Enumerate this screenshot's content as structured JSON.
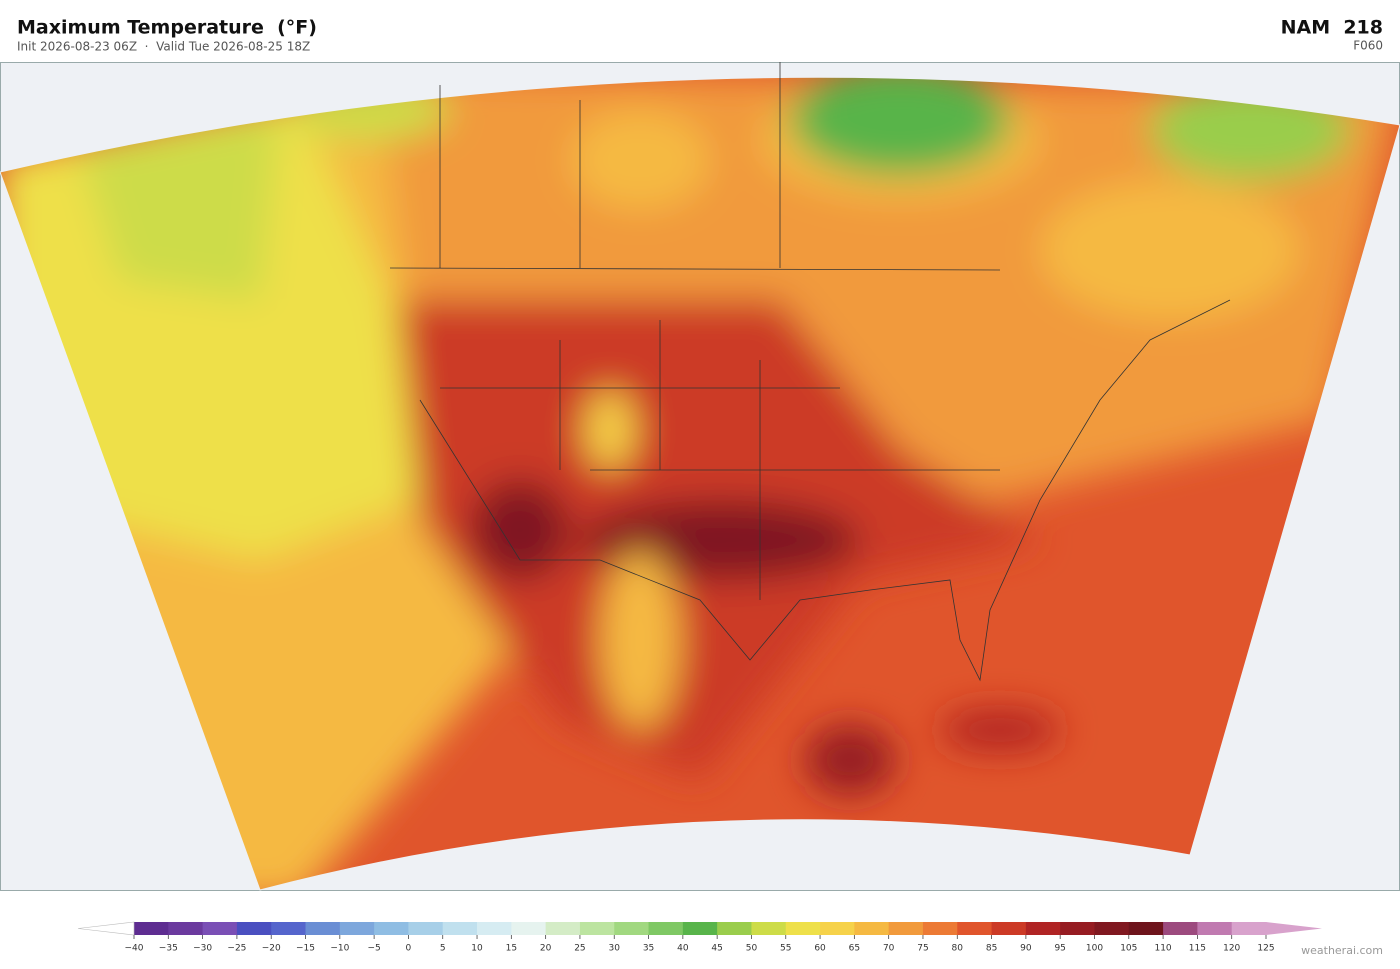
{
  "header": {
    "title": "Maximum Temperature  (°F)",
    "subtitle": "Init 2026-08-23 06Z  ·  Valid Tue 2026-08-25 18Z",
    "model": "NAM  218",
    "forecast_hour": "F060"
  },
  "colorbar": {
    "ticks": [
      {
        "value": -40,
        "label": "−40"
      },
      {
        "value": -35,
        "label": "−35"
      },
      {
        "value": -30,
        "label": "−30"
      },
      {
        "value": -25,
        "label": "−25"
      },
      {
        "value": -20,
        "label": "−20"
      },
      {
        "value": -15,
        "label": "−15"
      },
      {
        "value": -10,
        "label": "−10"
      },
      {
        "value": -5,
        "label": "−5"
      },
      0,
      5,
      10,
      15,
      20,
      25,
      30,
      35,
      40,
      45,
      50,
      55,
      60,
      65,
      70,
      75,
      80,
      85,
      90,
      95,
      100,
      105,
      110,
      115,
      120,
      125
    ],
    "colors": [
      "#5e2d91",
      "#6b3a9e",
      "#7a4fb5",
      "#4a4fc0",
      "#5565cc",
      "#6a8ed4",
      "#7da7dc",
      "#8fbde3",
      "#a7cfe8",
      "#c0e0ee",
      "#d6ecf2",
      "#e6f3ef",
      "#d4ecc6",
      "#bce4a0",
      "#a1d880",
      "#7fc864",
      "#58b44a",
      "#9acd4c",
      "#cddc48",
      "#eee04a",
      "#f6d24a",
      "#f5b942",
      "#f19a3c",
      "#ec7a35",
      "#e0552c",
      "#cc3a26",
      "#b02424",
      "#961c22",
      "#801820",
      "#6e141c",
      "#9c4a7e",
      "#c07ab0",
      "#d8a2cc"
    ],
    "extend_low_color": "#ffffff",
    "extend_high_color": "#d8a2cc"
  },
  "watermark": "weatherai.com"
}
